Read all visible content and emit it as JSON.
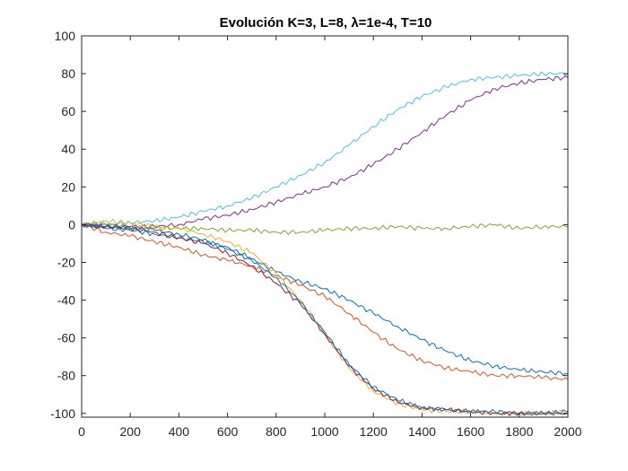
{
  "chart_data": {
    "type": "line",
    "title": "Evolución K=3, L=8, λ=1e-4, T=10",
    "xlabel": "",
    "ylabel": "",
    "xlim": [
      0,
      2000
    ],
    "ylim": [
      -102,
      100
    ],
    "xticks": [
      0,
      200,
      400,
      600,
      800,
      1000,
      1200,
      1400,
      1600,
      1800,
      2000
    ],
    "yticks": [
      -100,
      -80,
      -60,
      -40,
      -20,
      0,
      20,
      40,
      60,
      80,
      100
    ],
    "grid": false,
    "legend": "none",
    "series": [
      {
        "color": "#4DBEEE",
        "x": [
          0,
          100,
          200,
          300,
          400,
          500,
          600,
          700,
          800,
          900,
          1000,
          1100,
          1200,
          1300,
          1400,
          1500,
          1600,
          1700,
          1800,
          1900,
          2000
        ],
        "y": [
          0,
          0,
          1,
          2,
          4,
          7,
          10,
          14,
          20,
          26,
          33,
          42,
          52,
          61,
          68,
          73,
          77,
          78,
          79,
          80,
          80
        ]
      },
      {
        "color": "#7E2F8E",
        "x": [
          0,
          100,
          200,
          300,
          400,
          500,
          600,
          700,
          800,
          900,
          1000,
          1100,
          1200,
          1300,
          1400,
          1500,
          1600,
          1700,
          1800,
          1900,
          2000
        ],
        "y": [
          0,
          -1,
          -1,
          -1,
          0,
          3,
          5,
          8,
          12,
          16,
          20,
          25,
          32,
          40,
          49,
          58,
          66,
          72,
          75,
          77,
          78
        ]
      },
      {
        "color": "#77AC30",
        "x": [
          0,
          100,
          200,
          300,
          400,
          500,
          600,
          700,
          800,
          900,
          1000,
          1100,
          1200,
          1300,
          1400,
          1500,
          1600,
          1700,
          1800,
          1900,
          2000
        ],
        "y": [
          0,
          0,
          -1,
          -2,
          -2,
          -2,
          -3,
          -3,
          -4,
          -4,
          -3,
          -2,
          -2,
          -1,
          -2,
          -2,
          -1,
          0,
          -2,
          -1,
          -1
        ]
      },
      {
        "color": "#0072BD",
        "x": [
          0,
          100,
          200,
          300,
          400,
          500,
          600,
          700,
          800,
          900,
          1000,
          1100,
          1200,
          1300,
          1400,
          1500,
          1600,
          1700,
          1800,
          1900,
          2000
        ],
        "y": [
          0,
          -2,
          -3,
          -5,
          -7,
          -9,
          -12,
          -18,
          -25,
          -30,
          -34,
          -40,
          -47,
          -54,
          -61,
          -67,
          -72,
          -75,
          -77,
          -78,
          -79
        ]
      },
      {
        "color": "#D95319",
        "x": [
          0,
          100,
          200,
          300,
          400,
          500,
          600,
          700,
          800,
          900,
          1000,
          1100,
          1200,
          1300,
          1400,
          1500,
          1600,
          1700,
          1800,
          1900,
          2000
        ],
        "y": [
          0,
          -4,
          -6,
          -9,
          -12,
          -16,
          -19,
          -22,
          -27,
          -32,
          -38,
          -47,
          -57,
          -66,
          -72,
          -76,
          -78,
          -80,
          -80,
          -81,
          -82
        ]
      },
      {
        "color": "#EDB120",
        "x": [
          0,
          100,
          200,
          300,
          400,
          500,
          600,
          700,
          800,
          900,
          1000,
          1100,
          1200,
          1300,
          1400,
          1500,
          1600,
          1700,
          1800,
          1900,
          2000
        ],
        "y": [
          0,
          2,
          1,
          -1,
          -2,
          -5,
          -9,
          -15,
          -26,
          -40,
          -58,
          -76,
          -88,
          -95,
          -98,
          -99,
          -99,
          -100,
          -100,
          -100,
          -99
        ]
      },
      {
        "color": "#A2142F",
        "x": [
          0,
          100,
          200,
          300,
          400,
          500,
          600,
          700,
          800,
          900,
          1000,
          1100,
          1200,
          1300,
          1400,
          1500,
          1600,
          1700,
          1800,
          1900,
          2000
        ],
        "y": [
          0,
          -1,
          -2,
          -4,
          -7,
          -10,
          -15,
          -22,
          -31,
          -42,
          -58,
          -75,
          -87,
          -94,
          -97,
          -98,
          -99,
          -100,
          -100,
          -100,
          -100
        ]
      },
      {
        "color": "#0072BD",
        "x": [
          0,
          100,
          200,
          300,
          400,
          500,
          600,
          700,
          800,
          900,
          1000,
          1100,
          1200,
          1300,
          1400,
          1500,
          1600,
          1700,
          1800,
          1900,
          2000
        ],
        "y": [
          0,
          -1,
          -2,
          -3,
          -5,
          -8,
          -13,
          -19,
          -28,
          -41,
          -57,
          -74,
          -86,
          -93,
          -97,
          -98,
          -99,
          -99,
          -100,
          -100,
          -99
        ]
      }
    ]
  }
}
